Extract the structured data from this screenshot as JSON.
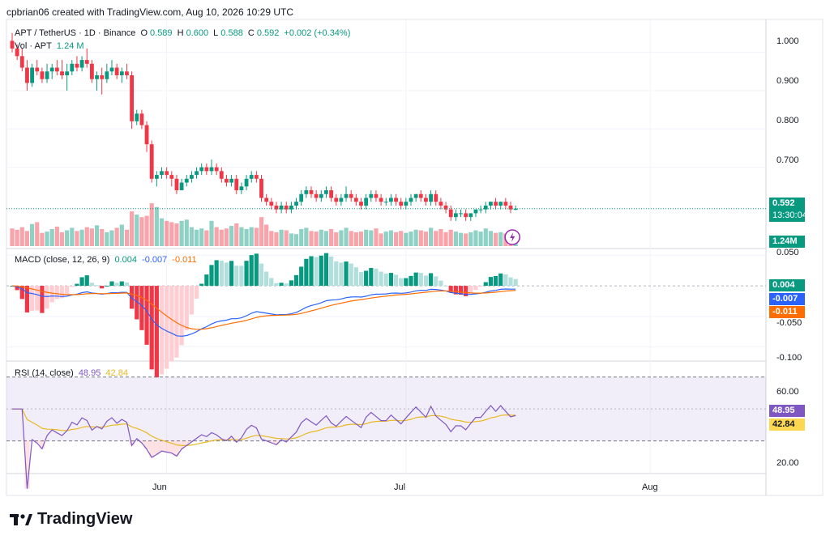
{
  "watermark": "cpbrian06 created with TradingView.com, Aug 10, 2026 10:29 UTC",
  "header": {
    "symbol": "APT / TetherUS · 1D · Binance",
    "o_label": "O",
    "o_value": "0.589",
    "h_label": "H",
    "h_value": "0.600",
    "l_label": "L",
    "l_value": "0.588",
    "c_label": "C",
    "c_value": "0.592",
    "change": "+0.002 (+0.34%)",
    "vol_label": "Vol · APT",
    "vol_value": "1.24 M"
  },
  "price_axis": [
    "1.000",
    "0.900",
    "0.800",
    "0.700"
  ],
  "price_tag": {
    "price": "0.592",
    "countdown": "13:30:04",
    "volume": "1.24M"
  },
  "macd": {
    "label": "MACD (close, 12, 26, 9)",
    "hist": "0.004",
    "macd": "-0.007",
    "signal": "-0.011",
    "axis": [
      "0.050",
      "-0.050",
      "-0.100"
    ]
  },
  "rsi": {
    "label": "RSI (14, close)",
    "value": "48.95",
    "ma": "42.84",
    "axis": [
      "60.00",
      "20.00"
    ]
  },
  "time_axis": [
    "Jun",
    "Jul",
    "Aug"
  ],
  "brand": "TradingView",
  "colors": {
    "up": "#089981",
    "down": "#f23645",
    "macd": "#2962ff",
    "signal": "#ff6d00",
    "rsi": "#7e57c2",
    "rsi_ma": "#e8b923"
  },
  "chart_data": {
    "type": "candlestick",
    "price_ylim": [
      0.545,
      1.052
    ],
    "candles": [
      [
        1.03,
        1.05,
        1.0,
        1.01
      ],
      [
        1.01,
        1.02,
        0.98,
        0.99
      ],
      [
        0.99,
        1.01,
        0.95,
        0.96
      ],
      [
        0.96,
        0.98,
        0.9,
        0.92
      ],
      [
        0.92,
        0.97,
        0.91,
        0.96
      ],
      [
        0.96,
        0.98,
        0.94,
        0.95
      ],
      [
        0.95,
        0.96,
        0.92,
        0.93
      ],
      [
        0.93,
        0.97,
        0.92,
        0.95
      ],
      [
        0.95,
        0.97,
        0.93,
        0.96
      ],
      [
        0.96,
        0.98,
        0.94,
        0.95
      ],
      [
        0.95,
        0.98,
        0.93,
        0.94
      ],
      [
        0.94,
        0.97,
        0.9,
        0.95
      ],
      [
        0.95,
        0.98,
        0.94,
        0.97
      ],
      [
        0.97,
        0.99,
        0.95,
        0.96
      ],
      [
        0.96,
        0.99,
        0.95,
        0.98
      ],
      [
        0.98,
        1.01,
        0.96,
        0.97
      ],
      [
        0.97,
        0.98,
        0.92,
        0.93
      ],
      [
        0.93,
        0.95,
        0.9,
        0.94
      ],
      [
        0.94,
        0.96,
        0.89,
        0.93
      ],
      [
        0.93,
        0.97,
        0.92,
        0.95
      ],
      [
        0.95,
        0.98,
        0.94,
        0.96
      ],
      [
        0.96,
        0.97,
        0.93,
        0.94
      ],
      [
        0.94,
        0.96,
        0.92,
        0.95
      ],
      [
        0.95,
        0.97,
        0.93,
        0.94
      ],
      [
        0.94,
        0.95,
        0.8,
        0.82
      ],
      [
        0.82,
        0.85,
        0.81,
        0.84
      ],
      [
        0.84,
        0.85,
        0.8,
        0.81
      ],
      [
        0.81,
        0.82,
        0.74,
        0.76
      ],
      [
        0.76,
        0.77,
        0.66,
        0.67
      ],
      [
        0.67,
        0.69,
        0.65,
        0.68
      ],
      [
        0.68,
        0.7,
        0.67,
        0.69
      ],
      [
        0.69,
        0.7,
        0.67,
        0.68
      ],
      [
        0.68,
        0.69,
        0.65,
        0.67
      ],
      [
        0.67,
        0.68,
        0.63,
        0.64
      ],
      [
        0.64,
        0.67,
        0.64,
        0.66
      ],
      [
        0.66,
        0.68,
        0.65,
        0.67
      ],
      [
        0.67,
        0.69,
        0.66,
        0.68
      ],
      [
        0.68,
        0.7,
        0.67,
        0.69
      ],
      [
        0.69,
        0.71,
        0.68,
        0.7
      ],
      [
        0.7,
        0.71,
        0.68,
        0.69
      ],
      [
        0.69,
        0.72,
        0.68,
        0.7
      ],
      [
        0.7,
        0.71,
        0.68,
        0.69
      ],
      [
        0.69,
        0.7,
        0.66,
        0.67
      ],
      [
        0.67,
        0.68,
        0.65,
        0.66
      ],
      [
        0.66,
        0.68,
        0.65,
        0.67
      ],
      [
        0.67,
        0.68,
        0.63,
        0.64
      ],
      [
        0.64,
        0.66,
        0.63,
        0.65
      ],
      [
        0.65,
        0.68,
        0.64,
        0.67
      ],
      [
        0.67,
        0.69,
        0.66,
        0.68
      ],
      [
        0.68,
        0.69,
        0.66,
        0.67
      ],
      [
        0.67,
        0.68,
        0.61,
        0.62
      ],
      [
        0.62,
        0.63,
        0.6,
        0.61
      ],
      [
        0.61,
        0.62,
        0.59,
        0.6
      ],
      [
        0.6,
        0.61,
        0.58,
        0.59
      ],
      [
        0.59,
        0.61,
        0.58,
        0.6
      ],
      [
        0.6,
        0.61,
        0.58,
        0.59
      ],
      [
        0.59,
        0.61,
        0.58,
        0.6
      ],
      [
        0.6,
        0.62,
        0.59,
        0.61
      ],
      [
        0.61,
        0.64,
        0.6,
        0.63
      ],
      [
        0.63,
        0.65,
        0.62,
        0.64
      ],
      [
        0.64,
        0.65,
        0.62,
        0.63
      ],
      [
        0.63,
        0.64,
        0.61,
        0.62
      ],
      [
        0.62,
        0.64,
        0.61,
        0.63
      ],
      [
        0.63,
        0.65,
        0.62,
        0.64
      ],
      [
        0.64,
        0.65,
        0.61,
        0.62
      ],
      [
        0.62,
        0.63,
        0.6,
        0.61
      ],
      [
        0.61,
        0.63,
        0.6,
        0.62
      ],
      [
        0.62,
        0.65,
        0.61,
        0.63
      ],
      [
        0.63,
        0.64,
        0.61,
        0.62
      ],
      [
        0.62,
        0.63,
        0.6,
        0.61
      ],
      [
        0.61,
        0.62,
        0.59,
        0.6
      ],
      [
        0.6,
        0.63,
        0.59,
        0.62
      ],
      [
        0.62,
        0.64,
        0.61,
        0.63
      ],
      [
        0.63,
        0.64,
        0.61,
        0.62
      ],
      [
        0.62,
        0.63,
        0.6,
        0.61
      ],
      [
        0.61,
        0.62,
        0.6,
        0.61
      ],
      [
        0.61,
        0.63,
        0.6,
        0.62
      ],
      [
        0.62,
        0.63,
        0.6,
        0.61
      ],
      [
        0.61,
        0.62,
        0.59,
        0.6
      ],
      [
        0.6,
        0.62,
        0.59,
        0.61
      ],
      [
        0.61,
        0.63,
        0.6,
        0.62
      ],
      [
        0.62,
        0.63,
        0.61,
        0.63
      ],
      [
        0.63,
        0.64,
        0.61,
        0.62
      ],
      [
        0.62,
        0.63,
        0.6,
        0.61
      ],
      [
        0.61,
        0.64,
        0.6,
        0.63
      ],
      [
        0.63,
        0.64,
        0.6,
        0.61
      ],
      [
        0.61,
        0.62,
        0.59,
        0.6
      ],
      [
        0.6,
        0.61,
        0.58,
        0.59
      ],
      [
        0.59,
        0.6,
        0.56,
        0.57
      ],
      [
        0.57,
        0.59,
        0.56,
        0.58
      ],
      [
        0.58,
        0.59,
        0.57,
        0.58
      ],
      [
        0.58,
        0.59,
        0.56,
        0.57
      ],
      [
        0.57,
        0.58,
        0.56,
        0.58
      ],
      [
        0.58,
        0.59,
        0.57,
        0.59
      ],
      [
        0.59,
        0.6,
        0.58,
        0.59
      ],
      [
        0.59,
        0.61,
        0.58,
        0.6
      ],
      [
        0.6,
        0.61,
        0.59,
        0.61
      ],
      [
        0.61,
        0.62,
        0.59,
        0.6
      ],
      [
        0.6,
        0.61,
        0.59,
        0.61
      ],
      [
        0.61,
        0.62,
        0.59,
        0.6
      ],
      [
        0.6,
        0.61,
        0.58,
        0.59
      ],
      [
        0.589,
        0.6,
        0.588,
        0.592
      ]
    ],
    "volume_mln": [
      2.8,
      2.6,
      3.0,
      2.4,
      3.5,
      3.8,
      2.1,
      2.3,
      2.7,
      3.1,
      2.2,
      2.5,
      2.9,
      2.4,
      2.6,
      3.0,
      2.8,
      3.3,
      2.7,
      2.2,
      2.5,
      2.9,
      3.4,
      2.6,
      5.5,
      5.0,
      4.6,
      4.8,
      6.8,
      6.2,
      4.4,
      4.0,
      3.8,
      3.6,
      4.0,
      4.2,
      3.0,
      2.6,
      2.8,
      2.5,
      4.0,
      3.0,
      2.6,
      2.8,
      3.2,
      3.6,
      3.0,
      2.7,
      3.0,
      2.9,
      4.6,
      3.4,
      2.4,
      2.2,
      2.6,
      2.5,
      2.0,
      1.9,
      2.7,
      2.9,
      2.4,
      2.3,
      2.6,
      2.4,
      2.7,
      2.2,
      2.5,
      2.9,
      2.4,
      2.2,
      2.3,
      2.6,
      2.5,
      2.8,
      2.0,
      2.3,
      2.5,
      2.2,
      2.4,
      2.1,
      2.3,
      2.6,
      2.5,
      2.3,
      2.9,
      2.4,
      2.7,
      2.2,
      2.6,
      2.3,
      2.1,
      2.0,
      2.2,
      2.5,
      2.3,
      2.8,
      2.4,
      2.1,
      2.2,
      2.0,
      1.9,
      1.24
    ],
    "volume_ylim": [
      0,
      9.5
    ],
    "macd_ylim": [
      -0.115,
      0.057
    ],
    "rsi_ylim": [
      10,
      78
    ],
    "rsi_bands": [
      70,
      30
    ],
    "x_ticks": [
      {
        "label": "Jun",
        "index": 31
      },
      {
        "label": "Jul",
        "index": 79
      },
      {
        "label": "Aug",
        "index": 128
      }
    ]
  }
}
